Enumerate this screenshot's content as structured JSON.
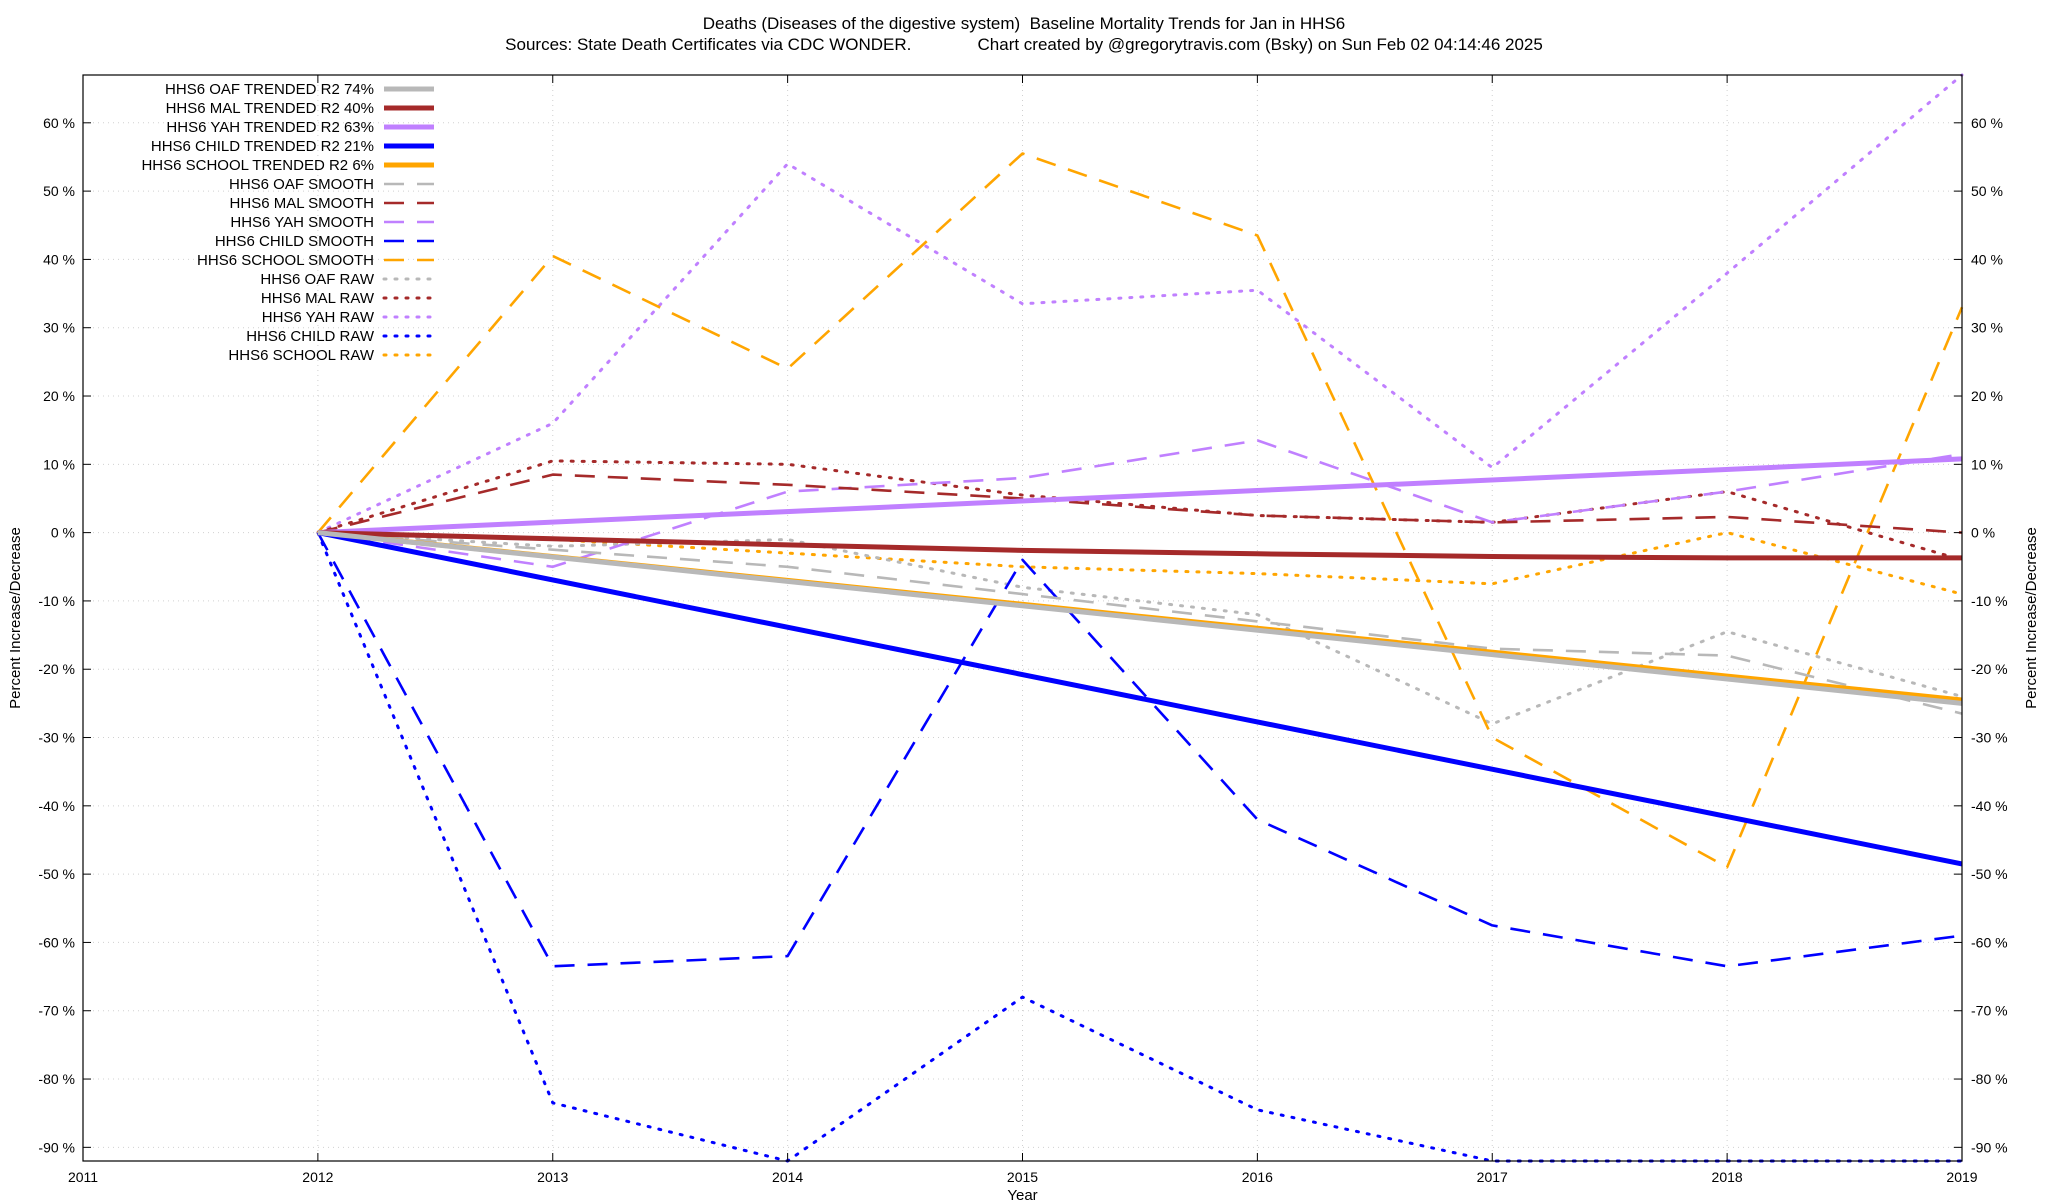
{
  "title_line1": "Deaths (Diseases of the digestive system)  Baseline Mortality Trends for Jan in HHS6",
  "title_line2": "Sources: State Death Certificates via CDC WONDER.              Chart created by @gregorytravis.com (Bsky) on Sun Feb 02 04:14:46 2025",
  "chart_data": {
    "type": "line",
    "xlabel": "Year",
    "ylabel": "Percent Increase/Decrease",
    "xlim": [
      2011,
      2019
    ],
    "ylim": [
      -92,
      67
    ],
    "x_ticks": [
      2011,
      2012,
      2013,
      2014,
      2015,
      2016,
      2017,
      2018,
      2019
    ],
    "y_ticks": [
      60,
      50,
      40,
      30,
      20,
      10,
      0,
      -10,
      -20,
      -30,
      -40,
      -50,
      -60,
      -70,
      -80,
      -90
    ],
    "y_tick_suffix": " %",
    "grid": true,
    "legend_position": "top-left",
    "series": [
      {
        "name": "HHS6 OAF TRENDED R2  74%",
        "style": "solid",
        "color": "#b8b8b8",
        "x": [
          2012,
          2019
        ],
        "y": [
          0,
          -25
        ]
      },
      {
        "name": "HHS6 MAL TRENDED R2  40%",
        "style": "solid",
        "color": "#a52a2a",
        "x": [
          2012,
          2013,
          2014,
          2015,
          2016,
          2017,
          2018,
          2019
        ],
        "y": [
          0,
          -0.9,
          -1.8,
          -2.6,
          -3.1,
          -3.5,
          -3.7,
          -3.7
        ]
      },
      {
        "name": "HHS6 YAH TRENDED R2  63%",
        "style": "solid",
        "color": "#c080ff",
        "x": [
          2012,
          2019
        ],
        "y": [
          0,
          10.8
        ]
      },
      {
        "name": "HHS6 CHILD TRENDED R2  21%",
        "style": "solid",
        "color": "#0000ff",
        "x": [
          2012,
          2019
        ],
        "y": [
          0,
          -48.5
        ]
      },
      {
        "name": "HHS6 SCHOOL TRENDED R2   6%",
        "style": "solid",
        "color": "#ffa500",
        "x": [
          2012,
          2019
        ],
        "y": [
          0,
          -24.5
        ]
      },
      {
        "name": "HHS6 OAF SMOOTH",
        "style": "dashed",
        "color": "#b8b8b8",
        "x": [
          2012,
          2013,
          2014,
          2015,
          2016,
          2017,
          2018,
          2019
        ],
        "y": [
          0,
          -2.5,
          -5,
          -9,
          -13,
          -17,
          -18,
          -26.5
        ]
      },
      {
        "name": "HHS6 MAL SMOOTH",
        "style": "dashed",
        "color": "#a52a2a",
        "x": [
          2012,
          2013,
          2014,
          2015,
          2016,
          2017,
          2018,
          2019
        ],
        "y": [
          0,
          8.5,
          7,
          5,
          2.5,
          1.5,
          2.3,
          0
        ]
      },
      {
        "name": "HHS6 YAH SMOOTH",
        "style": "dashed",
        "color": "#c080ff",
        "x": [
          2012,
          2013,
          2014,
          2015,
          2016,
          2017,
          2018,
          2019
        ],
        "y": [
          0,
          -5,
          6,
          8,
          13.5,
          1.5,
          6,
          11.5
        ]
      },
      {
        "name": "HHS6 CHILD SMOOTH",
        "style": "dashed",
        "color": "#0000ff",
        "x": [
          2012,
          2013,
          2014,
          2015,
          2016,
          2017,
          2018,
          2019
        ],
        "y": [
          0,
          -63.5,
          -62,
          -4,
          -42,
          -57.5,
          -63.5,
          -59
        ]
      },
      {
        "name": "HHS6 SCHOOL SMOOTH",
        "style": "dashed",
        "color": "#ffa500",
        "x": [
          2012,
          2013,
          2014,
          2015,
          2016,
          2017,
          2018,
          2019
        ],
        "y": [
          0,
          40.5,
          24,
          55.5,
          43.5,
          -30,
          -49,
          33
        ]
      },
      {
        "name": "HHS6 OAF RAW",
        "style": "dotted",
        "color": "#b8b8b8",
        "x": [
          2012,
          2013,
          2014,
          2015,
          2016,
          2017,
          2018,
          2019
        ],
        "y": [
          0,
          -2,
          -1,
          -8,
          -12,
          -28,
          -14.5,
          -24
        ]
      },
      {
        "name": "HHS6 MAL RAW",
        "style": "dotted",
        "color": "#a52a2a",
        "x": [
          2012,
          2013,
          2014,
          2015,
          2016,
          2017,
          2018,
          2019
        ],
        "y": [
          0,
          10.5,
          10,
          5.5,
          2.5,
          1.5,
          6,
          -4
        ]
      },
      {
        "name": "HHS6 YAH RAW",
        "style": "dotted",
        "color": "#c080ff",
        "x": [
          2012,
          2013,
          2014,
          2015,
          2016,
          2017,
          2018,
          2019
        ],
        "y": [
          0,
          16,
          54,
          33.5,
          35.5,
          9.5,
          38,
          67
        ]
      },
      {
        "name": "HHS6 CHILD RAW",
        "style": "dotted",
        "color": "#0000ff",
        "x": [
          2012,
          2013,
          2014,
          2015,
          2016,
          2017,
          2018,
          2019
        ],
        "y": [
          0,
          -83.5,
          -92,
          -68,
          -84.5,
          -92,
          -92,
          -92
        ]
      },
      {
        "name": "HHS6 SCHOOL RAW",
        "style": "dotted",
        "color": "#ffa500",
        "x": [
          2012,
          2013,
          2014,
          2015,
          2016,
          2017,
          2018,
          2019
        ],
        "y": [
          0,
          -1,
          -3,
          -5,
          -6,
          -7.5,
          0,
          -9
        ]
      }
    ]
  }
}
